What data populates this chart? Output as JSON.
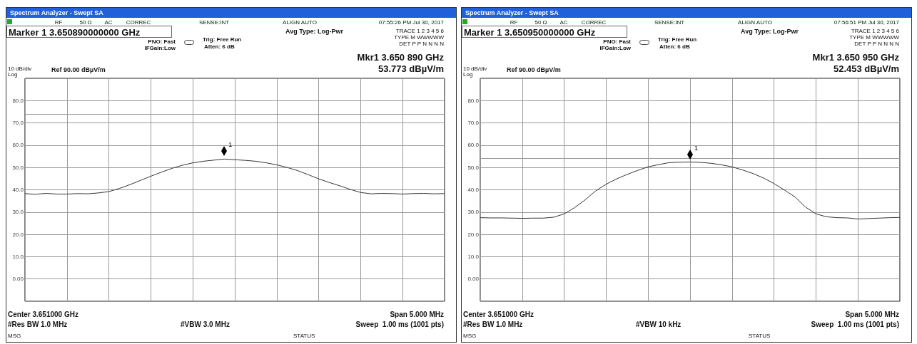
{
  "chart_data": [
    {
      "type": "line",
      "title": "Spectrum Analyzer - Swept SA",
      "color": "#333333",
      "grid": true,
      "tick_labels": "y",
      "categories": [
        null,
        null,
        null,
        null,
        null,
        null,
        null,
        null,
        null,
        null,
        null,
        null,
        null,
        null,
        null,
        null,
        null,
        null,
        null,
        null,
        null,
        null,
        null,
        null,
        null,
        null,
        null,
        null,
        null,
        null,
        null,
        null,
        null,
        null,
        null,
        null,
        null,
        null,
        null,
        null,
        null
      ],
      "values": [
        38.3,
        38.0,
        38.4,
        38.1,
        38.1,
        38.3,
        38.2,
        38.6,
        39.2,
        40.6,
        42.3,
        44.2,
        46.1,
        47.9,
        49.6,
        51.0,
        52.1,
        52.8,
        53.3,
        53.8,
        53.5,
        53.2,
        52.8,
        52.1,
        51.2,
        50.0,
        48.6,
        46.8,
        44.9,
        43.3,
        41.8,
        40.2,
        38.8,
        38.2,
        38.4,
        38.3,
        38.1,
        38.3,
        38.4,
        38.2,
        38.3
      ],
      "ylim": [
        -10,
        90
      ],
      "yticks": [
        {
          "value": -10,
          "label": null
        },
        {
          "value": 0,
          "label": "0.00"
        },
        {
          "value": 10,
          "label": "10.0"
        },
        {
          "value": 20,
          "label": "20.0"
        },
        {
          "value": 30,
          "label": "30.0"
        },
        {
          "value": 40,
          "label": "40.0"
        },
        {
          "value": 50,
          "label": "50.0"
        },
        {
          "value": 60,
          "label": "60.0"
        },
        {
          "value": 70,
          "label": "70.0"
        },
        {
          "value": 80,
          "label": "80.0"
        },
        {
          "value": 90,
          "label": null
        }
      ],
      "ref_lines": [
        {
          "axis": "y",
          "value": 74,
          "label": null,
          "color": "#999999"
        }
      ],
      "annotations": [
        "RF",
        "50 Ω",
        "AC",
        "CORREC",
        "SENSE:INT",
        "ALIGN AUTO",
        "07:55:26 PM Jul 30, 2017",
        "Marker 1 3.650890000000 GHz",
        "PNO: Fast",
        "IFGain:Low",
        "Trig: Free Run",
        "Atten: 6 dB",
        "Avg Type: Log-Pwr",
        "TRACE 1 2 3 4 5 6",
        "TYPE M WWWWW",
        "DET P P N N N N",
        "Mkr1 3.650 890 GHz",
        "53.773 dBµV/m",
        "10 dB/div",
        "Log",
        "Ref 90.00 dBµV/m",
        "Center 3.651000 GHz",
        "Span 5.000 MHz",
        "#Res BW 1.0 MHz",
        "#VBW 3.0 MHz",
        "Sweep  1.00 ms (1001 pts)",
        "MSG",
        "STATUS",
        {
          "text": "1",
          "y": 53.773
        }
      ]
    },
    {
      "type": "line",
      "title": "Spectrum Analyzer - Swept SA",
      "color": "#333333",
      "grid": true,
      "tick_labels": "y",
      "categories": [
        null,
        null,
        null,
        null,
        null,
        null,
        null,
        null,
        null,
        null,
        null,
        null,
        null,
        null,
        null,
        null,
        null,
        null,
        null,
        null,
        null,
        null,
        null,
        null,
        null,
        null,
        null,
        null,
        null,
        null,
        null,
        null,
        null,
        null,
        null,
        null,
        null,
        null,
        null,
        null,
        null
      ],
      "values": [
        27.5,
        27.4,
        27.4,
        27.3,
        27.2,
        27.3,
        27.3,
        27.7,
        29.2,
        32.0,
        35.5,
        39.5,
        42.5,
        44.9,
        46.9,
        48.7,
        50.3,
        51.3,
        52.2,
        52.4,
        52.5,
        52.3,
        51.9,
        51.2,
        50.3,
        48.9,
        47.3,
        45.3,
        42.8,
        39.9,
        36.8,
        32.3,
        29.2,
        27.9,
        27.5,
        27.4,
        26.9,
        27.1,
        27.3,
        27.5,
        27.6
      ],
      "ylim": [
        -10,
        90
      ],
      "yticks": [
        {
          "value": -10,
          "label": null
        },
        {
          "value": 0,
          "label": "0.00"
        },
        {
          "value": 10,
          "label": "10.0"
        },
        {
          "value": 20,
          "label": "20.0"
        },
        {
          "value": 30,
          "label": "30.0"
        },
        {
          "value": 40,
          "label": "40.0"
        },
        {
          "value": 50,
          "label": "50.0"
        },
        {
          "value": 60,
          "label": "60.0"
        },
        {
          "value": 70,
          "label": "70.0"
        },
        {
          "value": 80,
          "label": "80.0"
        },
        {
          "value": 90,
          "label": null
        }
      ],
      "ref_lines": [
        {
          "axis": "y",
          "value": 54,
          "label": null,
          "color": "#999999"
        }
      ],
      "annotations": [
        "RF",
        "50 Ω",
        "AC",
        "CORREC",
        "SENSE:INT",
        "ALIGN AUTO",
        "07:56:51 PM Jul 30, 2017",
        "Marker 1 3.650950000000 GHz",
        "PNO: Fast",
        "IFGain:Low",
        "Trig: Free Run",
        "Atten: 6 dB",
        "Avg Type: Log-Pwr",
        "TRACE 1 2 3 4 5 6",
        "TYPE M WWWWW",
        "DET P P N N N N",
        "Mkr1 3.650 950 GHz",
        "52.453 dBµV/m",
        "10 dB/div",
        "Log",
        "Ref 90.00 dBµV/m",
        "Center 3.651000 GHz",
        "Span 5.000 MHz",
        "#Res BW 1.0 MHz",
        "#VBW 10 kHz",
        "Sweep  1.00 ms (1001 pts)",
        "MSG",
        "STATUS",
        {
          "text": "1",
          "y": 52.453
        }
      ]
    }
  ]
}
